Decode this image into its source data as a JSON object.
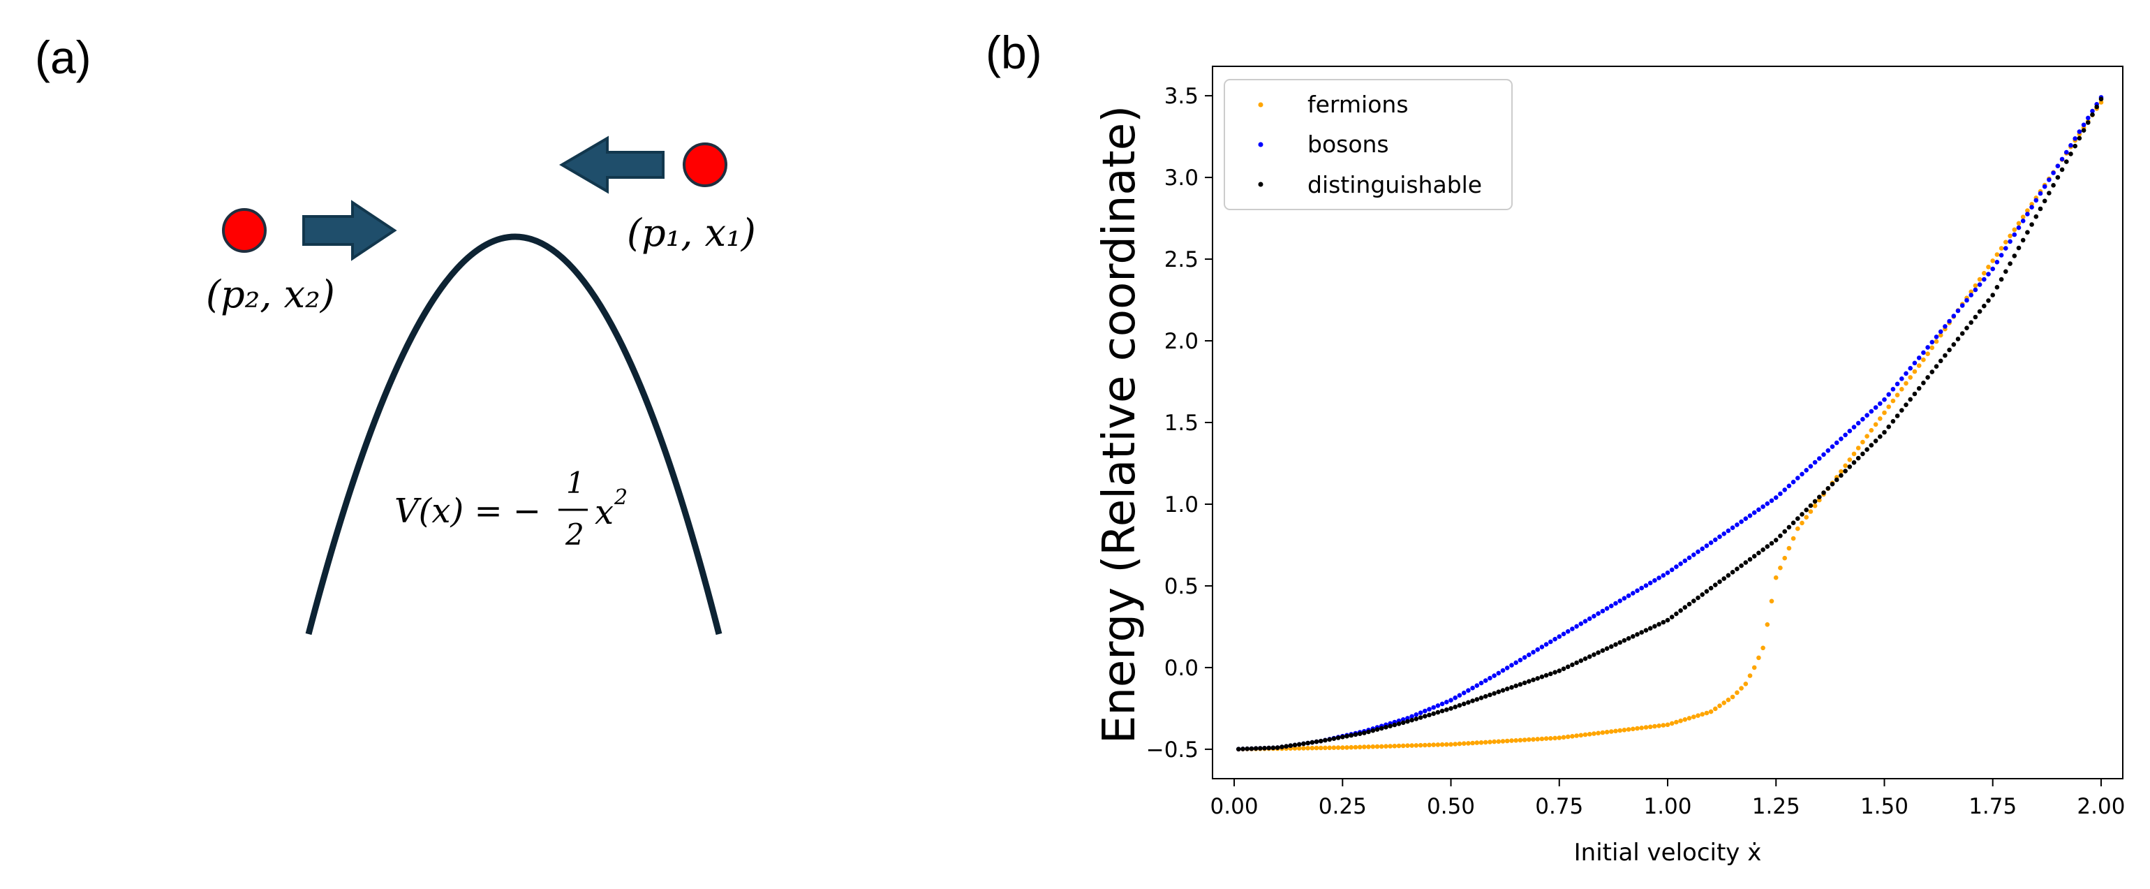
{
  "figure": {
    "panel_a": {
      "label": "(a)",
      "particle_right": "(p₁, x₁)",
      "particle_left": "(p₂, x₂)",
      "potential_lhs": "V(x) = −",
      "potential_num": "1",
      "potential_den": "2",
      "potential_var": "x",
      "potential_exp": "2",
      "colors": {
        "particle": "#ff0000",
        "arrow": "#1f4e6b",
        "curve": "#0d2333"
      }
    },
    "panel_b": {
      "label": "(b)"
    }
  },
  "chart_data": {
    "type": "scatter",
    "xlabel": "Initial velocity ẋ",
    "ylabel": "Energy (Relative coordinate)",
    "xlim": [
      -0.05,
      2.05
    ],
    "ylim": [
      -0.68,
      3.68
    ],
    "xticks": [
      0.0,
      0.25,
      0.5,
      0.75,
      1.0,
      1.25,
      1.5,
      1.75,
      2.0
    ],
    "xtick_labels": [
      "0.00",
      "0.25",
      "0.50",
      "0.75",
      "1.00",
      "1.25",
      "1.50",
      "1.75",
      "2.00"
    ],
    "yticks": [
      -0.5,
      0.0,
      0.5,
      1.0,
      1.5,
      2.0,
      2.5,
      3.0,
      3.5
    ],
    "ytick_labels": [
      "−0.5",
      "0.0",
      "0.5",
      "1.0",
      "1.5",
      "2.0",
      "2.5",
      "3.0",
      "3.5"
    ],
    "grid": false,
    "legend_position": "top-left",
    "x_range": [
      0.01,
      2.0
    ],
    "n_points": 200,
    "series": [
      {
        "name": "fermions",
        "color": "#ffa500",
        "x": [
          0.0,
          0.25,
          0.5,
          0.75,
          1.0,
          1.1,
          1.15,
          1.18,
          1.2,
          1.22,
          1.25,
          1.3,
          1.4,
          1.5,
          1.6,
          1.7,
          1.8,
          1.9,
          2.0
        ],
        "y": [
          -0.5,
          -0.49,
          -0.47,
          -0.43,
          -0.35,
          -0.27,
          -0.18,
          -0.1,
          0.0,
          0.12,
          0.55,
          0.85,
          1.2,
          1.56,
          1.92,
          2.3,
          2.68,
          3.07,
          3.46
        ]
      },
      {
        "name": "bosons",
        "color": "#0000ff",
        "x": [
          0.0,
          0.1,
          0.2,
          0.3,
          0.4,
          0.5,
          0.6,
          0.75,
          1.0,
          1.25,
          1.5,
          1.75,
          2.0
        ],
        "y": [
          -0.5,
          -0.49,
          -0.45,
          -0.39,
          -0.31,
          -0.2,
          -0.05,
          0.19,
          0.58,
          1.04,
          1.64,
          2.44,
          3.49
        ]
      },
      {
        "name": "distinguishable",
        "color": "#000000",
        "x": [
          0.0,
          0.1,
          0.2,
          0.3,
          0.4,
          0.5,
          0.75,
          1.0,
          1.25,
          1.5,
          1.75,
          2.0
        ],
        "y": [
          -0.5,
          -0.49,
          -0.45,
          -0.4,
          -0.33,
          -0.25,
          -0.02,
          0.29,
          0.78,
          1.44,
          2.28,
          3.48
        ]
      }
    ]
  }
}
